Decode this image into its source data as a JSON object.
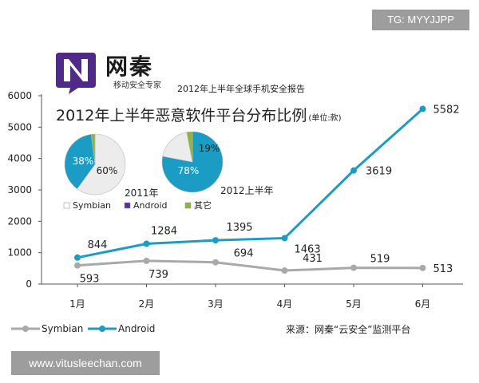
{
  "watermark_top": "TG: MYYJJPP",
  "watermark_bottom": "www.vitusleechan.com",
  "brand": {
    "name": "网秦",
    "slogan": "移动安全专家",
    "report_title": "2012年上半年全球手机安全报告"
  },
  "source_note": "来源：网秦“云安全”监测平台",
  "colors": {
    "android": "#1a9cc4",
    "symbian": "#a9a9a9",
    "other": "#8fb43a",
    "android_legend_swatch": "#5b2e8c",
    "logo": "#4f2a86"
  },
  "chart_data": [
    {
      "type": "line",
      "title": "2012年上半年恶意软件平台分布比例",
      "unit_label": "(单位:款)",
      "categories": [
        "1月",
        "2月",
        "3月",
        "4月",
        "5月",
        "6月"
      ],
      "ylim": [
        0,
        6000
      ],
      "yticks": [
        0,
        1000,
        2000,
        3000,
        4000,
        5000,
        6000
      ],
      "grid": false,
      "legend_position": "bottom-left",
      "series": [
        {
          "name": "Symbian",
          "values": [
            593,
            739,
            694,
            431,
            519,
            513
          ],
          "color": "#a9a9a9"
        },
        {
          "name": "Android",
          "values": [
            844,
            1284,
            1395,
            1463,
            3619,
            5582
          ],
          "color": "#1a9cc4"
        }
      ]
    },
    {
      "type": "pie",
      "caption": "2011年",
      "slices": [
        {
          "label": "60%",
          "value": 60,
          "series": "Symbian"
        },
        {
          "label": "38%",
          "value": 38,
          "series": "Android"
        },
        {
          "label": "",
          "value": 2,
          "series": "其它"
        }
      ]
    },
    {
      "type": "pie",
      "caption": "2012上半年",
      "slices": [
        {
          "label": "78%",
          "value": 78,
          "series": "Android"
        },
        {
          "label": "19%",
          "value": 19,
          "series": "Symbian"
        },
        {
          "label": "",
          "value": 3,
          "series": "其它"
        }
      ]
    }
  ],
  "pie_legend": [
    "Symbian",
    "Android",
    "其它"
  ]
}
